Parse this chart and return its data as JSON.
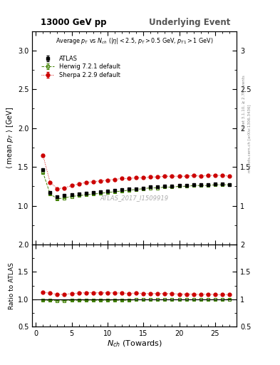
{
  "title_left": "13000 GeV pp",
  "title_right": "Underlying Event",
  "plot_title": "Average $p_T$ vs $N_{ch}$ ($|\\eta| < 2.5$, $p_T > 0.5$ GeV, $p_{T1} > 1$ GeV)",
  "watermark": "ATLAS_2017_I1509919",
  "right_label_top": "Rivet 3.1.10, ≥ 2.7M events",
  "right_label_bot": "mcplots.cern.ch [arXiv:1306.3436]",
  "xlabel": "$N_{ch}$ (Towards)",
  "ylabel_main": "$\\langle$ mean $p_T$ $\\rangle$ [GeV]",
  "ylabel_ratio": "Ratio to ATLAS",
  "ylim_main": [
    0.5,
    3.25
  ],
  "ylim_ratio": [
    0.5,
    2.0
  ],
  "yticks_main": [
    1.0,
    1.5,
    2.0,
    2.5,
    3.0
  ],
  "yticks_ratio": [
    0.5,
    1.0,
    1.5,
    2.0
  ],
  "xlim": [
    -0.5,
    28
  ],
  "xticks": [
    0,
    5,
    10,
    15,
    20,
    25
  ],
  "atlas_x": [
    1,
    2,
    3,
    4,
    5,
    6,
    7,
    8,
    9,
    10,
    11,
    12,
    13,
    14,
    15,
    16,
    17,
    18,
    19,
    20,
    21,
    22,
    23,
    24,
    25,
    26,
    27
  ],
  "atlas_y": [
    1.46,
    1.17,
    1.12,
    1.13,
    1.14,
    1.15,
    1.16,
    1.17,
    1.18,
    1.19,
    1.2,
    1.21,
    1.22,
    1.22,
    1.23,
    1.24,
    1.24,
    1.25,
    1.25,
    1.26,
    1.26,
    1.27,
    1.27,
    1.27,
    1.28,
    1.28,
    1.27
  ],
  "atlas_yerr": [
    0.015,
    0.008,
    0.007,
    0.007,
    0.007,
    0.007,
    0.007,
    0.007,
    0.007,
    0.007,
    0.007,
    0.007,
    0.007,
    0.007,
    0.007,
    0.007,
    0.007,
    0.007,
    0.007,
    0.007,
    0.007,
    0.007,
    0.007,
    0.007,
    0.007,
    0.007,
    0.007
  ],
  "herwig_x": [
    1,
    2,
    3,
    4,
    5,
    6,
    7,
    8,
    9,
    10,
    11,
    12,
    13,
    14,
    15,
    16,
    17,
    18,
    19,
    20,
    21,
    22,
    23,
    24,
    25,
    26,
    27
  ],
  "herwig_y": [
    1.43,
    1.15,
    1.09,
    1.1,
    1.12,
    1.13,
    1.14,
    1.15,
    1.16,
    1.17,
    1.18,
    1.19,
    1.2,
    1.21,
    1.22,
    1.23,
    1.23,
    1.24,
    1.24,
    1.25,
    1.25,
    1.26,
    1.26,
    1.26,
    1.27,
    1.27,
    1.27
  ],
  "herwig_yerr": [
    0.015,
    0.008,
    0.007,
    0.007,
    0.007,
    0.007,
    0.007,
    0.007,
    0.007,
    0.007,
    0.007,
    0.007,
    0.007,
    0.007,
    0.007,
    0.007,
    0.007,
    0.007,
    0.007,
    0.007,
    0.007,
    0.007,
    0.007,
    0.007,
    0.007,
    0.007,
    0.007
  ],
  "sherpa_x": [
    1,
    2,
    3,
    4,
    5,
    6,
    7,
    8,
    9,
    10,
    11,
    12,
    13,
    14,
    15,
    16,
    17,
    18,
    19,
    20,
    21,
    22,
    23,
    24,
    25,
    26,
    27
  ],
  "sherpa_y": [
    1.65,
    1.3,
    1.22,
    1.23,
    1.26,
    1.28,
    1.3,
    1.31,
    1.32,
    1.33,
    1.34,
    1.35,
    1.35,
    1.36,
    1.36,
    1.37,
    1.37,
    1.38,
    1.38,
    1.38,
    1.38,
    1.39,
    1.38,
    1.39,
    1.39,
    1.39,
    1.38
  ],
  "sherpa_yerr": [
    0.02,
    0.012,
    0.008,
    0.008,
    0.008,
    0.008,
    0.008,
    0.008,
    0.008,
    0.008,
    0.008,
    0.008,
    0.008,
    0.008,
    0.008,
    0.008,
    0.008,
    0.008,
    0.008,
    0.008,
    0.008,
    0.008,
    0.008,
    0.008,
    0.008,
    0.008,
    0.008
  ],
  "atlas_color": "#000000",
  "herwig_color": "#408000",
  "sherpa_color": "#cc0000",
  "atlas_markersize": 3.5,
  "herwig_markersize": 3.5,
  "sherpa_markersize": 3.5,
  "bg_color": "#ffffff"
}
